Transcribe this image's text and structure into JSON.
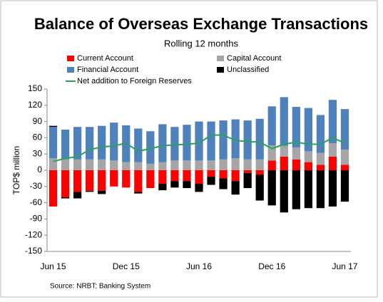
{
  "chart_data": {
    "type": "bar",
    "title": "Balance of Overseas Exchange Transactions",
    "subtitle": "Rolling 12 months",
    "y_label": "TOP$ million",
    "source": "Source: NRBT; Banking System",
    "stacked": true,
    "categories": [
      "Jun 15",
      null,
      null,
      null,
      null,
      null,
      "Dec 15",
      null,
      null,
      null,
      null,
      null,
      "Jun 16",
      null,
      null,
      null,
      null,
      null,
      "Dec 16",
      null,
      null,
      null,
      null,
      null,
      "Jun 17"
    ],
    "series": [
      {
        "name": "Current Account",
        "color": "#ff0000",
        "values": [
          -67,
          -50,
          -40,
          -38,
          -38,
          -30,
          -32,
          -40,
          -33,
          -25,
          -20,
          -20,
          -25,
          -12,
          -15,
          -20,
          -5,
          -8,
          18,
          25,
          20,
          15,
          10,
          25,
          10
        ]
      },
      {
        "name": "Capital Account",
        "color": "#a6a6a6",
        "values": [
          22,
          20,
          20,
          20,
          20,
          18,
          15,
          15,
          12,
          15,
          18,
          18,
          18,
          18,
          20,
          22,
          20,
          20,
          28,
          20,
          22,
          20,
          22,
          25,
          28
        ]
      },
      {
        "name": "Financial Account",
        "color": "#4f81bd",
        "values": [
          58,
          55,
          60,
          60,
          62,
          70,
          68,
          62,
          60,
          70,
          62,
          66,
          72,
          72,
          72,
          72,
          72,
          75,
          72,
          90,
          75,
          80,
          70,
          80,
          75
        ]
      },
      {
        "name": "Unclassified",
        "color": "#000000",
        "values": [
          2,
          -2,
          -12,
          -2,
          -6,
          0,
          0,
          -3,
          0,
          -12,
          -12,
          -13,
          -15,
          -15,
          -20,
          -25,
          -28,
          -48,
          -65,
          -78,
          -72,
          -70,
          -70,
          -67,
          -58
        ]
      },
      {
        "name": "Net addition to Foreign Reserves",
        "color": "#2ca05a",
        "type": "line",
        "values": [
          16,
          22,
          25,
          38,
          43,
          45,
          50,
          35,
          40,
          45,
          47,
          48,
          50,
          65,
          65,
          55,
          53,
          52,
          40,
          48,
          52,
          48,
          48,
          60,
          50
        ]
      }
    ],
    "ylim": [
      -150,
      150
    ],
    "yticks": [
      -150,
      -120,
      -90,
      -60,
      -30,
      0,
      30,
      60,
      90,
      120,
      150
    ]
  }
}
